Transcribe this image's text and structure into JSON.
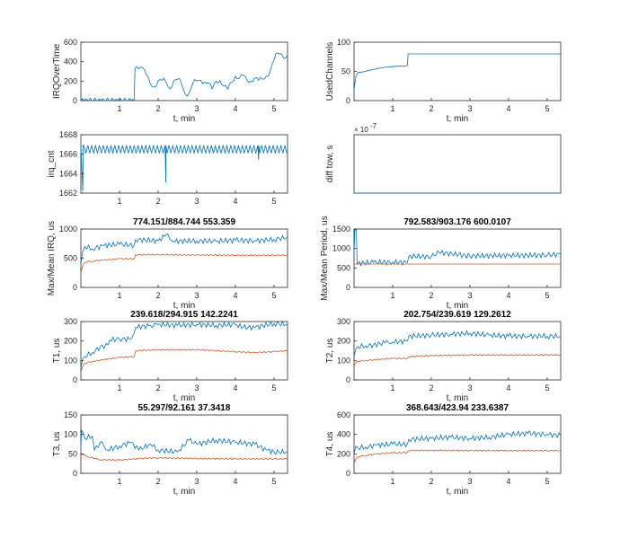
{
  "colors": {
    "series1": "#0072BD",
    "series2": "#D95319",
    "axis": "#262626",
    "background": "#ffffff"
  },
  "chart_data": [
    {
      "type": "line",
      "xlabel": "t, min",
      "ylabel": "IRQOverTime",
      "title": "",
      "xlim": [
        0,
        5.35
      ],
      "ylim": [
        0,
        600
      ],
      "xticks": [
        "1",
        "2",
        "3",
        "4",
        "5"
      ],
      "yticks": [
        "0",
        "200",
        "400",
        "600"
      ],
      "series": [
        {
          "x": [
            0,
            1.38,
            1.4,
            1.45,
            1.6,
            1.7,
            1.8,
            1.9,
            2.0,
            2.1,
            2.2,
            2.3,
            2.4,
            2.5,
            2.6,
            2.7,
            2.8,
            2.9,
            3.0,
            3.1,
            3.2,
            3.3,
            3.4,
            3.5,
            3.6,
            3.7,
            3.8,
            3.9,
            4.0,
            4.1,
            4.2,
            4.3,
            4.4,
            4.5,
            4.6,
            4.7,
            4.8,
            4.9,
            5.0,
            5.1,
            5.2,
            5.3,
            5.35
          ],
          "y": [
            0,
            0,
            330,
            350,
            340,
            260,
            170,
            140,
            200,
            210,
            195,
            120,
            200,
            220,
            180,
            70,
            75,
            180,
            200,
            210,
            190,
            180,
            120,
            200,
            205,
            150,
            120,
            190,
            250,
            230,
            260,
            210,
            200,
            230,
            210,
            220,
            250,
            300,
            420,
            490,
            480,
            440,
            460
          ]
        }
      ]
    },
    {
      "type": "line",
      "xlabel": "t, min",
      "ylabel": "UsedChannels",
      "title": "",
      "xlim": [
        0,
        5.35
      ],
      "ylim": [
        0,
        100
      ],
      "xticks": [
        "1",
        "2",
        "3",
        "4",
        "5"
      ],
      "yticks": [
        "0",
        "50",
        "100"
      ],
      "series": [
        {
          "x": [
            0,
            0.05,
            0.1,
            0.2,
            0.3,
            0.4,
            0.5,
            0.6,
            0.7,
            0.8,
            0.9,
            1.0,
            1.1,
            1.2,
            1.3,
            1.38,
            1.4,
            5.35
          ],
          "y": [
            18,
            42,
            48,
            49,
            50,
            52,
            53,
            55,
            56,
            57,
            58,
            58,
            59,
            59,
            59,
            60,
            80,
            80
          ]
        }
      ]
    },
    {
      "type": "line",
      "xlabel": "",
      "ylabel": "irq_cnt",
      "title": "",
      "xlim": [
        0,
        5.35
      ],
      "ylim": [
        1662,
        1668
      ],
      "xticks": [
        "1",
        "2",
        "3",
        "4",
        "5"
      ],
      "yticks": [
        "1662",
        "1664",
        "1666",
        "1668"
      ],
      "series": [
        {
          "x": [
            0,
            0.04,
            0.06,
            5.35
          ],
          "y": [
            1666.8,
            1662.2,
            1666.8,
            1666.8
          ],
          "oscillate": {
            "low": 1666.1,
            "high": 1666.9,
            "step": 0.05
          },
          "dips": [
            {
              "x": 0.05,
              "y": 1662.2
            },
            {
              "x": 2.2,
              "y": 1663.1
            },
            {
              "x": 4.6,
              "y": 1665.4
            }
          ]
        }
      ]
    },
    {
      "type": "line",
      "xlabel": "",
      "ylabel": "diff tow, s",
      "title": "",
      "xlim": [
        0,
        5.35
      ],
      "ylim": [
        0,
        1
      ],
      "xticks": [],
      "yticks": [],
      "exponent_label": "× 10",
      "exponent_power": "-7",
      "series": [
        {
          "x": [
            0,
            5.35
          ],
          "y": [
            0,
            0
          ]
        }
      ]
    },
    {
      "type": "line",
      "xlabel": "t, min",
      "ylabel": "Max/Mean IRQ, us",
      "title": "774.151/884.744  553.359",
      "xlim": [
        0,
        5.35
      ],
      "ylim": [
        0,
        1000
      ],
      "xticks": [
        "1",
        "2",
        "3",
        "4",
        "5"
      ],
      "yticks": [
        "0",
        "500",
        "1000"
      ],
      "series": [
        {
          "x": [
            0,
            0.05,
            0.1,
            0.3,
            0.6,
            1.0,
            1.38,
            1.42,
            2.0,
            2.2,
            2.4,
            3.0,
            3.5,
            4.0,
            4.5,
            5.0,
            5.35
          ],
          "y": [
            400,
            620,
            700,
            660,
            720,
            740,
            720,
            820,
            800,
            900,
            790,
            800,
            790,
            810,
            800,
            820,
            860
          ]
        },
        {
          "x": [
            0,
            0.05,
            0.1,
            0.3,
            0.6,
            1.0,
            1.38,
            1.42,
            2.0,
            3.0,
            4.0,
            5.0,
            5.35
          ],
          "y": [
            250,
            380,
            430,
            450,
            470,
            490,
            490,
            560,
            560,
            555,
            550,
            550,
            553
          ]
        }
      ]
    },
    {
      "type": "line",
      "xlabel": "t, min",
      "ylabel": "Max/Mean Period, us",
      "title": "792.583/903.176  600.0107",
      "xlim": [
        0,
        5.35
      ],
      "ylim": [
        0,
        1500
      ],
      "xticks": [
        "1",
        "2",
        "3",
        "4",
        "5"
      ],
      "yticks": [
        "0",
        "500",
        "1000",
        "1500"
      ],
      "series": [
        {
          "x": [
            0,
            0.02,
            0.06,
            0.08,
            0.1,
            0.5,
            1.0,
            1.38,
            1.42,
            2.0,
            2.2,
            3.0,
            4.0,
            5.0,
            5.35
          ],
          "y": [
            900,
            1480,
            1480,
            600,
            620,
            640,
            650,
            640,
            800,
            790,
            900,
            810,
            820,
            830,
            850
          ]
        },
        {
          "x": [
            0,
            0.1,
            5.35
          ],
          "y": [
            600,
            600,
            600
          ]
        }
      ]
    },
    {
      "type": "line",
      "xlabel": "t, min",
      "ylabel": "T1, us",
      "title": "239.618/294.915  142.2241",
      "xlim": [
        0,
        5.35
      ],
      "ylim": [
        0,
        300
      ],
      "xticks": [
        "1",
        "2",
        "3",
        "4",
        "5"
      ],
      "yticks": [
        "0",
        "100",
        "200",
        "300"
      ],
      "series": [
        {
          "x": [
            0,
            0.05,
            0.1,
            0.3,
            0.5,
            0.7,
            0.75,
            1.0,
            1.3,
            1.38,
            1.42,
            1.8,
            2.0,
            2.5,
            3.0,
            3.5,
            4.0,
            4.2,
            4.5,
            5.0,
            5.35
          ],
          "y": [
            60,
            110,
            120,
            140,
            170,
            180,
            205,
            210,
            210,
            240,
            270,
            280,
            285,
            280,
            285,
            280,
            285,
            270,
            270,
            290,
            285
          ]
        },
        {
          "x": [
            0,
            0.05,
            0.1,
            0.3,
            0.6,
            1.0,
            1.38,
            1.42,
            2.0,
            3.0,
            3.5,
            4.0,
            4.5,
            5.0,
            5.35
          ],
          "y": [
            40,
            70,
            85,
            95,
            105,
            115,
            120,
            150,
            155,
            155,
            150,
            145,
            140,
            145,
            150
          ]
        }
      ]
    },
    {
      "type": "line",
      "xlabel": "t, min",
      "ylabel": "T2, us",
      "title": "202.754/239.619  129.2612",
      "xlim": [
        0,
        5.35
      ],
      "ylim": [
        0,
        300
      ],
      "xticks": [
        "1",
        "2",
        "3",
        "4",
        "5"
      ],
      "yticks": [
        "0",
        "100",
        "200",
        "300"
      ],
      "series": [
        {
          "x": [
            0,
            0.05,
            0.1,
            0.3,
            0.5,
            0.8,
            1.0,
            1.38,
            1.42,
            2.0,
            2.5,
            3.0,
            3.5,
            4.0,
            4.5,
            5.0,
            5.35
          ],
          "y": [
            120,
            160,
            170,
            175,
            180,
            190,
            195,
            200,
            225,
            230,
            235,
            240,
            230,
            225,
            225,
            225,
            225
          ]
        },
        {
          "x": [
            0,
            0.05,
            0.1,
            0.3,
            0.6,
            1.0,
            1.38,
            1.42,
            2.0,
            3.0,
            4.0,
            5.0,
            5.35
          ],
          "y": [
            70,
            90,
            95,
            100,
            105,
            110,
            110,
            120,
            125,
            128,
            128,
            128,
            129
          ]
        }
      ]
    },
    {
      "type": "line",
      "xlabel": "t, min",
      "ylabel": "T3, us",
      "title": "55.297/92.161  37.3418",
      "xlim": [
        0,
        5.35
      ],
      "ylim": [
        0,
        150
      ],
      "xticks": [
        "1",
        "2",
        "3",
        "4",
        "5"
      ],
      "yticks": [
        "0",
        "50",
        "100",
        "150"
      ],
      "series": [
        {
          "x": [
            0,
            0.02,
            0.1,
            0.3,
            0.35,
            0.5,
            0.7,
            1.0,
            1.3,
            1.5,
            1.8,
            2.0,
            2.5,
            2.8,
            3.0,
            3.5,
            4.0,
            4.5,
            4.8,
            5.0,
            5.35
          ],
          "y": [
            70,
            110,
            90,
            95,
            60,
            80,
            60,
            70,
            80,
            60,
            75,
            60,
            55,
            85,
            75,
            85,
            80,
            75,
            60,
            55,
            55
          ]
        },
        {
          "x": [
            0,
            0.05,
            0.2,
            0.5,
            1.0,
            1.5,
            2.0,
            3.0,
            4.0,
            5.0,
            5.35
          ],
          "y": [
            50,
            48,
            42,
            35,
            34,
            38,
            40,
            38,
            37,
            37,
            37
          ]
        }
      ]
    },
    {
      "type": "line",
      "xlabel": "t, min",
      "ylabel": "T4, us",
      "title": "368.643/423.94  233.6387",
      "xlim": [
        0,
        5.35
      ],
      "ylim": [
        0,
        600
      ],
      "xticks": [
        "1",
        "2",
        "3",
        "4",
        "5"
      ],
      "yticks": [
        "0",
        "200",
        "400",
        "600"
      ],
      "series": [
        {
          "x": [
            0,
            0.05,
            0.1,
            0.3,
            0.6,
            1.0,
            1.38,
            1.42,
            2.0,
            2.5,
            3.0,
            3.5,
            4.0,
            4.5,
            5.0,
            5.35
          ],
          "y": [
            200,
            280,
            260,
            270,
            290,
            300,
            300,
            350,
            360,
            370,
            360,
            370,
            400,
            410,
            400,
            390
          ]
        },
        {
          "x": [
            0,
            0.05,
            0.1,
            0.3,
            0.6,
            1.0,
            1.38,
            1.42,
            2.0,
            3.0,
            4.0,
            5.0,
            5.35
          ],
          "y": [
            100,
            150,
            170,
            185,
            200,
            210,
            215,
            235,
            235,
            234,
            233,
            233,
            234
          ]
        }
      ]
    }
  ]
}
